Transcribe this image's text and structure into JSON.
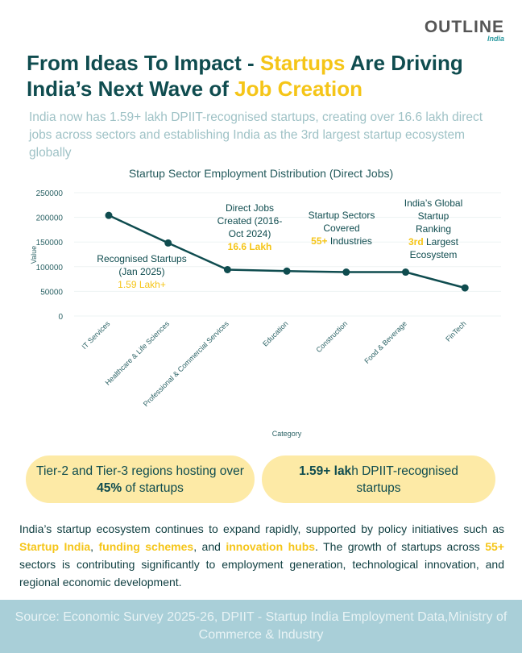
{
  "logo": {
    "word": "OUTLINE",
    "sub": "India"
  },
  "title": {
    "part1": "From Ideas To Impact - ",
    "highlight1": "Startups",
    "part2": " Are Driving India’s Next Wave of ",
    "highlight2": "Job Creation"
  },
  "subtitle": "India now has 1.59+ lakh DPIIT-recognised startups, creating over 16.6 lakh direct jobs across sectors and establishing India as the 3rd largest startup ecosystem globally",
  "chart_data": {
    "type": "line",
    "title": "Startup Sector Employment Distribution (Direct Jobs)",
    "xlabel": "Category",
    "ylabel": "Value",
    "categories": [
      "IT Services",
      "Healthcare & Life Sciences",
      "Professional & Commercial Services",
      "Education",
      "Construction",
      "Food & Beverage",
      "FinTech"
    ],
    "values": [
      204000,
      148000,
      94000,
      91000,
      89000,
      89000,
      57000
    ],
    "ylim": [
      0,
      250000
    ],
    "yticks": [
      0,
      50000,
      100000,
      150000,
      200000,
      250000
    ],
    "grid": true,
    "color": "#0f4c4f",
    "annotations": [
      {
        "lines": [
          "Recognised Startups",
          "(Jan 2025)"
        ],
        "value": "1.59 Lakh+"
      },
      {
        "lines": [
          "Direct Jobs",
          "Created (2016-",
          "Oct 2024)"
        ],
        "value": "16.6 Lakh"
      },
      {
        "lines": [
          "Startup Sectors",
          "Covered"
        ],
        "value": "55+",
        "suffix": " Industries"
      },
      {
        "lines": [
          "India’s Global",
          "Startup",
          "Ranking"
        ],
        "value": "3rd",
        "suffix": " Largest",
        "after": "Ecosystem"
      }
    ]
  },
  "pills": [
    {
      "pre": "Tier-2 and Tier-3 regions hosting over ",
      "bold": "45%",
      "post": " of startups"
    },
    {
      "bold": "1.59+ lak",
      "post": "h DPIIT-recognised startups"
    }
  ],
  "body": {
    "t1": "India’s startup ecosystem continues to expand rapidly, supported by policy initiatives such as ",
    "h1": "Startup India",
    "t2": ", ",
    "h2": "funding schemes",
    "t3": ", and ",
    "h3": "innovation hubs",
    "t4": ". The growth of startups across ",
    "h4": "55+",
    "t5": " sectors is contributing significantly to employment generation, technological innovation, and regional economic development."
  },
  "source": "Source: Economic Survey 2025-26, DPIIT - Startup India Employment Data,Ministry of Commerce & Industry"
}
